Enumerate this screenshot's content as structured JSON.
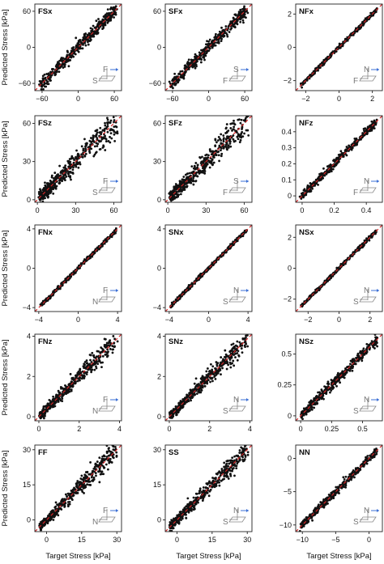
{
  "chart_data": {
    "type": "scatter",
    "xlabel": "Target Stress [kPa]",
    "ylabel": "Predicted Stress [kPa]",
    "grid": false,
    "reference_line": {
      "equation": "y = x",
      "style": "dashed",
      "color": "#d62728"
    },
    "marker_color": "#111111",
    "panels": [
      {
        "id": "p-fsx",
        "title": "FSx",
        "xlim": [
          -72,
          72
        ],
        "ylim": [
          -72,
          72
        ],
        "xticks": [
          -60,
          0,
          60
        ],
        "yticks": [
          -60,
          0,
          60
        ],
        "spread": 0.035,
        "count": 420,
        "icon": {
          "top": "F",
          "left": "S",
          "arrows": [
            "→"
          ]
        }
      },
      {
        "id": "p-sfx",
        "title": "SFx",
        "xlim": [
          -72,
          72
        ],
        "ylim": [
          -72,
          72
        ],
        "xticks": [
          -60,
          0,
          60
        ],
        "yticks": [
          -60,
          0,
          60
        ],
        "spread": 0.035,
        "count": 420,
        "icon": {
          "top": "S",
          "left": "F",
          "arrows": [
            "→"
          ]
        }
      },
      {
        "id": "p-nfx",
        "title": "NFx",
        "xlim": [
          -2.6,
          2.6
        ],
        "ylim": [
          -2.6,
          2.6
        ],
        "xticks": [
          -2,
          0,
          2
        ],
        "yticks": [
          -2,
          0,
          2
        ],
        "spread": 0.01,
        "count": 420,
        "icon": {
          "top": "N",
          "left": "F",
          "arrows": [
            "→"
          ]
        }
      },
      {
        "id": "p-fsz",
        "title": "FSz",
        "xlim": [
          -2,
          66
        ],
        "ylim": [
          -2,
          66
        ],
        "xticks": [
          0,
          30,
          60
        ],
        "yticks": [
          0,
          30,
          60
        ],
        "spread": 0.09,
        "count": 480,
        "icon": {
          "top": "F",
          "left": "S",
          "arrows": [
            "↑"
          ]
        }
      },
      {
        "id": "p-sfz",
        "title": "SFz",
        "xlim": [
          -2,
          66
        ],
        "ylim": [
          -2,
          66
        ],
        "xticks": [
          0,
          30,
          60
        ],
        "yticks": [
          0,
          30,
          60
        ],
        "spread": 0.09,
        "count": 480,
        "icon": {
          "top": "S",
          "left": "F",
          "arrows": [
            "↑"
          ]
        }
      },
      {
        "id": "p-nfz",
        "title": "NFz",
        "xlim": [
          -0.04,
          0.5
        ],
        "ylim": [
          -0.04,
          0.5
        ],
        "xticks": [
          0,
          0.2,
          0.4
        ],
        "yticks": [
          0,
          0.1,
          0.2,
          0.3,
          0.4
        ],
        "spread": 0.02,
        "count": 420,
        "icon": {
          "top": "N",
          "left": "F",
          "arrows": [
            "↑"
          ]
        }
      },
      {
        "id": "p-fnx",
        "title": "FNx",
        "xlim": [
          -4.4,
          4.4
        ],
        "ylim": [
          -4.4,
          4.4
        ],
        "xticks": [
          -4,
          0,
          4
        ],
        "yticks": [
          -4,
          0,
          4
        ],
        "spread": 0.01,
        "count": 420,
        "icon": {
          "top": "F",
          "left": "N",
          "arrows": [
            "→"
          ]
        }
      },
      {
        "id": "p-snx",
        "title": "SNx",
        "xlim": [
          -4.4,
          4.4
        ],
        "ylim": [
          -4.4,
          4.4
        ],
        "xticks": [
          -4,
          0,
          4
        ],
        "yticks": [
          -4,
          0,
          4
        ],
        "spread": 0.01,
        "count": 420,
        "icon": {
          "top": "N",
          "left": "S",
          "arrows": [
            "↔"
          ]
        }
      },
      {
        "id": "p-nsx",
        "title": "NSx",
        "xlim": [
          -2.8,
          2.8
        ],
        "ylim": [
          -2.8,
          2.8
        ],
        "xticks": [
          -2,
          0,
          2
        ],
        "yticks": [
          -2,
          0,
          2
        ],
        "spread": 0.01,
        "count": 420,
        "icon": {
          "top": "N",
          "left": "S",
          "arrows": [
            "→"
          ]
        }
      },
      {
        "id": "p-fnz",
        "title": "FNz",
        "xlim": [
          -0.2,
          4.1
        ],
        "ylim": [
          -0.2,
          4.1
        ],
        "xticks": [
          0,
          2,
          4
        ],
        "yticks": [
          0,
          2,
          4
        ],
        "spread": 0.06,
        "count": 480,
        "icon": {
          "top": "F",
          "left": "N",
          "arrows": [
            "↑"
          ]
        }
      },
      {
        "id": "p-snz",
        "title": "SNz",
        "xlim": [
          -0.2,
          4.1
        ],
        "ylim": [
          -0.2,
          4.1
        ],
        "xticks": [
          0,
          2,
          4
        ],
        "yticks": [
          0,
          2,
          4
        ],
        "spread": 0.06,
        "count": 480,
        "icon": {
          "top": "N",
          "left": "S",
          "arrows": [
            "↑"
          ]
        }
      },
      {
        "id": "p-nsz",
        "title": "NSz",
        "xlim": [
          -0.04,
          0.66
        ],
        "ylim": [
          -0.04,
          0.66
        ],
        "xticks": [
          0,
          0.25,
          0.5
        ],
        "yticks": [
          0,
          0.25,
          0.5
        ],
        "spread": 0.03,
        "count": 420,
        "icon": {
          "top": "N",
          "left": "S",
          "arrows": [
            "↑"
          ]
        }
      },
      {
        "id": "p-ff",
        "title": "FF",
        "xlim": [
          -5,
          32
        ],
        "ylim": [
          -5,
          32
        ],
        "xticks": [
          0,
          15,
          30
        ],
        "yticks": [
          0,
          15,
          30
        ],
        "spread": 0.06,
        "count": 480,
        "icon": {
          "top": "F",
          "left": "N",
          "arrows": [
            "↑"
          ]
        }
      },
      {
        "id": "p-ss",
        "title": "SS",
        "xlim": [
          -5,
          32
        ],
        "ylim": [
          -5,
          32
        ],
        "xticks": [
          0,
          15,
          30
        ],
        "yticks": [
          0,
          15,
          30
        ],
        "spread": 0.06,
        "count": 480,
        "icon": {
          "top": "N",
          "left": "S",
          "arrows": [
            "↔"
          ]
        }
      },
      {
        "id": "p-nn",
        "title": "NN",
        "xlim": [
          -11,
          2
        ],
        "ylim": [
          -11,
          2
        ],
        "xticks": [
          -10,
          -5,
          0
        ],
        "yticks": [
          -10,
          -5,
          0
        ],
        "spread": 0.02,
        "count": 420,
        "icon": {
          "top": "N",
          "left": "S",
          "arrows": [
            "↑"
          ]
        }
      }
    ]
  }
}
